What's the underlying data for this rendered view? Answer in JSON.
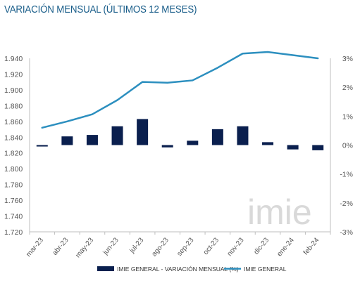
{
  "colors": {
    "title": "#1a5e8a",
    "bar": "#0a1f4e",
    "line": "#2c8fbf",
    "axis": "#bfbfbf",
    "tick_text": "#555555",
    "watermark": "#d9d9d9"
  },
  "watermark_text": "imie",
  "chart_data": {
    "type": "bar+line",
    "title": "VARIACIÓN MENSUAL (ÚLTIMOS 12 MESES)",
    "categories": [
      "mar-23",
      "abr-23",
      "may-23",
      "jun-23",
      "jul-23",
      "ago-23",
      "sep-23",
      "oct-23",
      "nov-23",
      "dic-23",
      "ene-24",
      "feb-24"
    ],
    "y_left": {
      "min": 1720,
      "max": 1940,
      "step": 20,
      "tick_labels": [
        "1.720",
        "1.740",
        "1.760",
        "1.780",
        "1.800",
        "1.820",
        "1.840",
        "1.860",
        "1.880",
        "1.900",
        "1.920",
        "1.940"
      ]
    },
    "y_right": {
      "min": -3,
      "max": 3,
      "step": 1,
      "tick_labels": [
        "-3%",
        "-2%",
        "-1%",
        "0%",
        "1%",
        "2%",
        "3%"
      ]
    },
    "grid": false,
    "legend_position": "bottom",
    "series": [
      {
        "name": "IMIE GENERAL - VARIACIÓN MENSUAL (%)",
        "type": "bar",
        "axis": "right",
        "values": [
          -0.05,
          0.3,
          0.35,
          0.65,
          0.9,
          -0.08,
          0.15,
          0.55,
          0.65,
          0.1,
          -0.15,
          -0.18
        ]
      },
      {
        "name": "IMIE GENERAL",
        "type": "line",
        "axis": "left",
        "values": [
          1852,
          1860,
          1869,
          1887,
          1910,
          1909,
          1912,
          1928,
          1946,
          1948,
          1944,
          1940
        ]
      }
    ]
  }
}
